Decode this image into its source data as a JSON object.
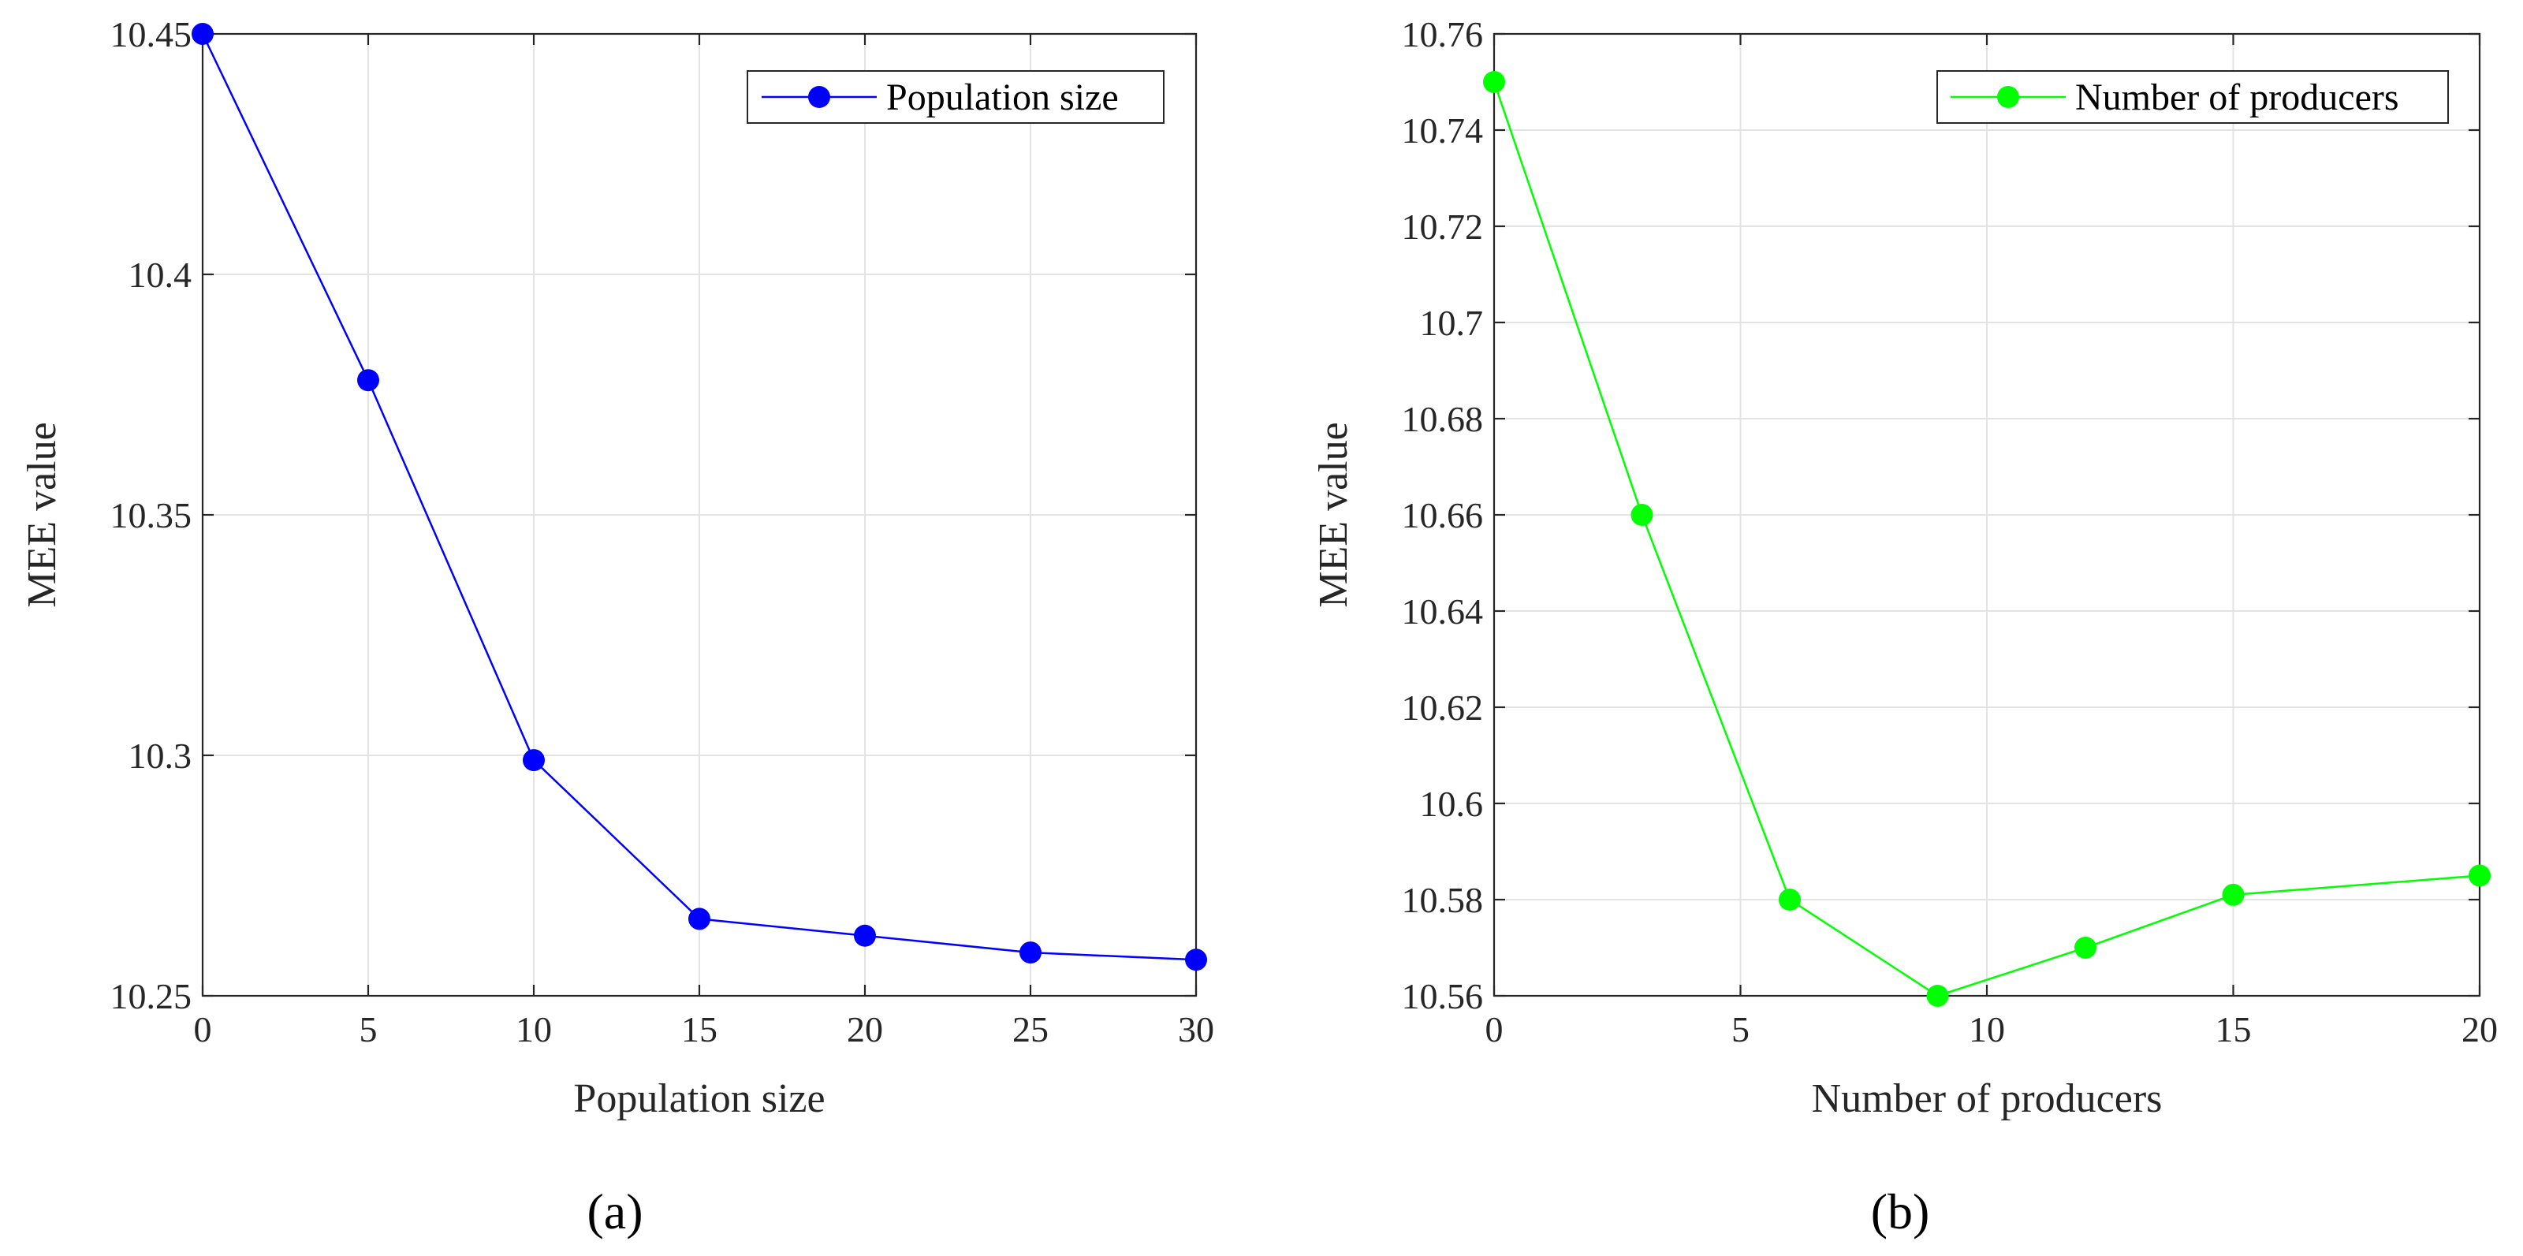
{
  "chart_data": [
    {
      "type": "line",
      "caption": "(a)",
      "xlabel": "Population size",
      "ylabel": "MEE value",
      "xlim": [
        0,
        30
      ],
      "ylim": [
        10.25,
        10.45
      ],
      "xticks": [
        0,
        5,
        10,
        15,
        20,
        25,
        30
      ],
      "yticks": [
        10.25,
        10.3,
        10.35,
        10.4,
        10.45
      ],
      "xtick_labels": [
        "0",
        "5",
        "10",
        "15",
        "20",
        "25",
        "30"
      ],
      "ytick_labels": [
        "10.25",
        "10.3",
        "10.35",
        "10.4",
        "10.45"
      ],
      "grid": true,
      "legend_position": "top-right",
      "series": [
        {
          "name": "Population size",
          "color": "#0000ff",
          "x": [
            0,
            5,
            10,
            15,
            20,
            25,
            30
          ],
          "y": [
            10.45,
            10.378,
            10.299,
            10.266,
            10.2625,
            10.259,
            10.2575
          ]
        }
      ]
    },
    {
      "type": "line",
      "caption": "(b)",
      "xlabel": "Number of producers",
      "ylabel": "MEE value",
      "xlim": [
        0,
        20
      ],
      "ylim": [
        10.56,
        10.76
      ],
      "xticks": [
        0,
        5,
        10,
        15,
        20
      ],
      "yticks": [
        10.56,
        10.58,
        10.6,
        10.62,
        10.64,
        10.66,
        10.68,
        10.7,
        10.72,
        10.74,
        10.76
      ],
      "xtick_labels": [
        "0",
        "5",
        "10",
        "15",
        "20"
      ],
      "ytick_labels": [
        "10.56",
        "10.58",
        "10.6",
        "10.62",
        "10.64",
        "10.66",
        "10.68",
        "10.7",
        "10.72",
        "10.74",
        "10.76"
      ],
      "grid": true,
      "legend_position": "top-right",
      "series": [
        {
          "name": "Number of producers",
          "color": "#00ff00",
          "x": [
            0,
            3,
            6,
            9,
            12,
            15,
            20
          ],
          "y": [
            10.75,
            10.66,
            10.58,
            10.56,
            10.57,
            10.581,
            10.585
          ]
        }
      ]
    }
  ]
}
